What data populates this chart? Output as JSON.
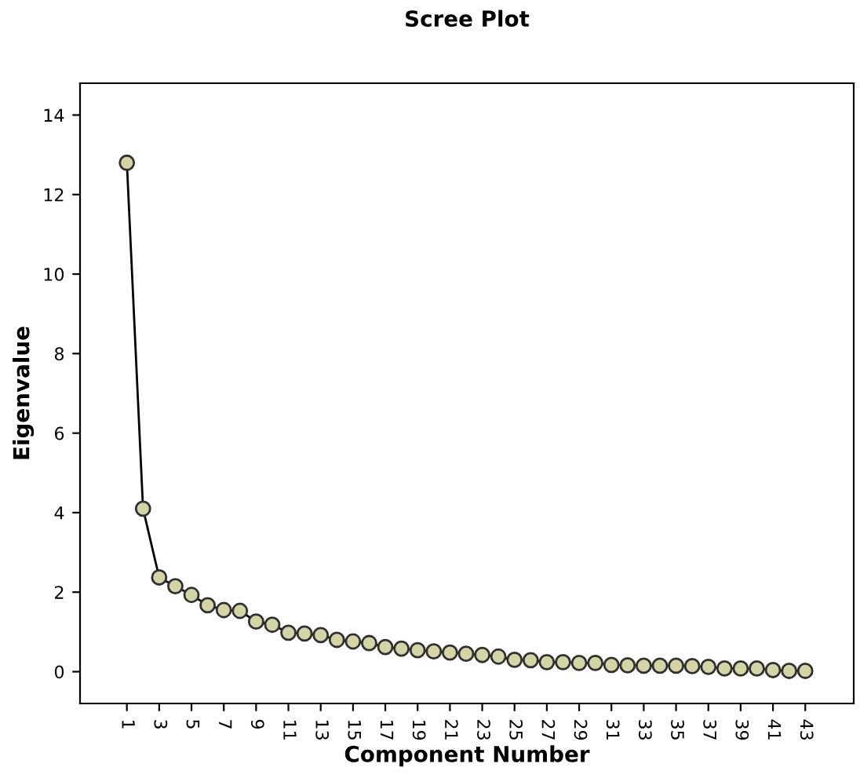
{
  "chart_data": {
    "type": "line",
    "title": "Scree Plot",
    "xlabel": "Component Number",
    "ylabel": "Eigenvalue",
    "categories": [
      "1",
      null,
      "3",
      null,
      "5",
      null,
      "7",
      null,
      "9",
      null,
      "11",
      null,
      "13",
      null,
      "15",
      null,
      "17",
      null,
      "19",
      null,
      "21",
      null,
      "23",
      null,
      "25",
      null,
      "27",
      null,
      "29",
      null,
      "31",
      null,
      "33",
      null,
      "35",
      null,
      "37",
      null,
      "39",
      null,
      "41",
      null,
      "43"
    ],
    "series": [
      {
        "color": "#000000",
        "values": [
          12.8,
          4.1,
          2.37,
          2.15,
          1.93,
          1.67,
          1.55,
          1.53,
          1.26,
          1.18,
          0.98,
          0.96,
          0.92,
          0.8,
          0.76,
          0.72,
          0.62,
          0.58,
          0.54,
          0.51,
          0.48,
          0.45,
          0.42,
          0.38,
          0.3,
          0.29,
          0.24,
          0.24,
          0.22,
          0.22,
          0.17,
          0.16,
          0.15,
          0.15,
          0.15,
          0.14,
          0.12,
          0.08,
          0.08,
          0.08,
          0.04,
          0.02,
          0.02
        ]
      }
    ],
    "marker": "circle",
    "line_style": "solid",
    "grid": false,
    "legend": false,
    "ylim": [
      -0.8,
      14.8
    ],
    "yticks": [
      0,
      2,
      4,
      6,
      8,
      10,
      12,
      14
    ]
  }
}
